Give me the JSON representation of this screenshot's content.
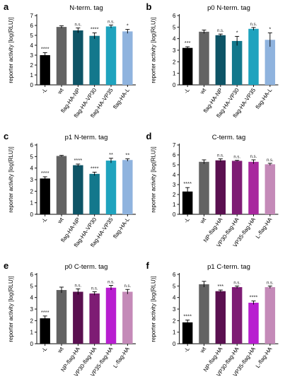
{
  "chart_data": [
    {
      "panel_letter": "a",
      "type": "bar",
      "title": "N-term. tag",
      "ylabel": "reporter activity [log(RLU)]",
      "ylim": [
        0,
        7
      ],
      "yticks": [
        0,
        1,
        2,
        3,
        4,
        5,
        6,
        7
      ],
      "grid": false,
      "categories": [
        "-L",
        "wt",
        "flag-HA-NP",
        "flag-HA-VP30",
        "flag-HA-VP35",
        "flag-HA-L"
      ],
      "values": [
        3.0,
        5.85,
        5.5,
        4.95,
        5.9,
        5.4
      ],
      "errors": [
        0.25,
        0.12,
        0.25,
        0.3,
        0.15,
        0.2
      ],
      "significance": [
        "****",
        "",
        "n.s.",
        "****",
        "n.s.",
        "*"
      ],
      "colors": [
        "#000000",
        "#636363",
        "#0e5466",
        "#13788c",
        "#1fa3be",
        "#8fb3de"
      ]
    },
    {
      "panel_letter": "b",
      "type": "bar",
      "title": "p0 N-term. tag",
      "ylabel": "reporter activity [log(RLU)]",
      "ylim": [
        0,
        6
      ],
      "yticks": [
        0,
        1,
        2,
        3,
        4,
        5,
        6
      ],
      "grid": false,
      "categories": [
        "-L",
        "wt",
        "flag-HA-NP",
        "flag-HA-VP30",
        "flag-HA-VP35",
        "flag-HA-L"
      ],
      "values": [
        3.2,
        4.6,
        4.3,
        3.8,
        4.85,
        3.9
      ],
      "errors": [
        0.1,
        0.15,
        0.1,
        0.4,
        0.12,
        0.6
      ],
      "significance": [
        "***",
        "",
        "n.s.",
        "*",
        "n.s.",
        "*"
      ],
      "colors": [
        "#000000",
        "#636363",
        "#0e5466",
        "#13788c",
        "#1fa3be",
        "#8fb3de"
      ]
    },
    {
      "panel_letter": "c",
      "type": "bar",
      "title": "p1 N-term. tag",
      "ylabel": "reporter activity [log(RLU)]",
      "ylim": [
        0,
        6
      ],
      "yticks": [
        0,
        1,
        2,
        3,
        4,
        5,
        6
      ],
      "grid": false,
      "categories": [
        "-L",
        "wt",
        "flag-HA-NP",
        "flag-HA-VP30",
        "flag-HA-VP35",
        "flag-HA-L"
      ],
      "values": [
        3.1,
        5.05,
        4.25,
        3.5,
        4.65,
        4.7
      ],
      "errors": [
        0.15,
        0.05,
        0.1,
        0.15,
        0.2,
        0.1
      ],
      "significance": [
        "****",
        "",
        "****",
        "****",
        "**",
        "**"
      ],
      "colors": [
        "#000000",
        "#636363",
        "#0e5466",
        "#13788c",
        "#1fa3be",
        "#8fb3de"
      ]
    },
    {
      "panel_letter": "d",
      "type": "bar",
      "title": "C-term. tag",
      "ylabel": "reporter activity [log(RLU)]",
      "ylim": [
        0,
        7
      ],
      "yticks": [
        0,
        1,
        2,
        3,
        4,
        5,
        6,
        7
      ],
      "grid": false,
      "categories": [
        "-L",
        "wt",
        "NP-flag-HA",
        "VP30-flag-HA",
        "VP35-flag-HA",
        "L-flag-HA"
      ],
      "values": [
        2.3,
        5.3,
        5.45,
        5.4,
        5.3,
        5.05
      ],
      "errors": [
        0.4,
        0.2,
        0.15,
        0.05,
        0.2,
        0.1
      ],
      "significance": [
        "****",
        "",
        "n.s.",
        "n.s.",
        "n.s.",
        "n.s."
      ],
      "colors": [
        "#000000",
        "#636363",
        "#5a1050",
        "#7e1c74",
        "#a8289e",
        "#c48ab8"
      ]
    },
    {
      "panel_letter": "e",
      "type": "bar",
      "title": "p0 C-term. tag",
      "ylabel": "reporter activity [log(RLU)]",
      "ylim": [
        0,
        6
      ],
      "yticks": [
        0,
        1,
        2,
        3,
        4,
        5,
        6
      ],
      "grid": false,
      "categories": [
        "-L",
        "wt",
        "NP-flag-HA",
        "VP30-flag-HA",
        "VP35-flag-HA",
        "L-flag-HA"
      ],
      "values": [
        2.2,
        4.65,
        4.5,
        4.35,
        4.85,
        4.5
      ],
      "errors": [
        0.2,
        0.25,
        0.25,
        0.15,
        0.2,
        0.2
      ],
      "significance": [
        "****",
        "",
        "n.s.",
        "n.s.",
        "n.s.",
        "n.s."
      ],
      "colors": [
        "#000000",
        "#636363",
        "#5a1050",
        "#7e1c74",
        "#b81ed0",
        "#c48ab8"
      ]
    },
    {
      "panel_letter": "f",
      "type": "bar",
      "title": "p1 C-term. tag",
      "ylabel": "reporter activity [log(RLU)]",
      "ylim": [
        0,
        6
      ],
      "yticks": [
        0,
        1,
        2,
        3,
        4,
        5,
        6
      ],
      "grid": false,
      "categories": [
        "-L",
        "wt",
        "NP-flag-HA",
        "VP30-flag-HA",
        "VP35-flag-HA",
        "L-flag-HA"
      ],
      "values": [
        1.85,
        5.15,
        4.55,
        4.9,
        3.55,
        4.9
      ],
      "errors": [
        0.2,
        0.25,
        0.1,
        0.1,
        0.15,
        0.1
      ],
      "significance": [
        "****",
        "",
        "***",
        "n.s.",
        "****",
        "n.s."
      ],
      "colors": [
        "#000000",
        "#636363",
        "#5a1050",
        "#7e1c74",
        "#b81ed0",
        "#c48ab8"
      ]
    }
  ]
}
